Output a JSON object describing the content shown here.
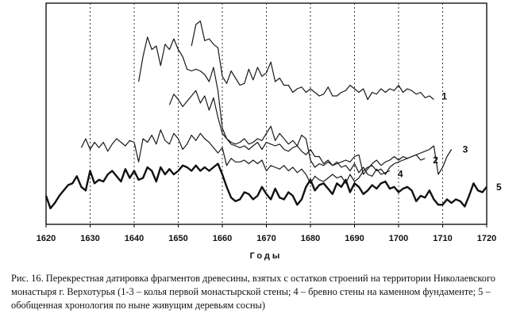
{
  "chart_data": {
    "type": "line",
    "xlabel": "Годы",
    "ylabel": "",
    "xlim": [
      1620,
      1720
    ],
    "ylim": [
      0,
      100
    ],
    "y_ticks_shown": false,
    "grid": "vertical dashed every 10 years",
    "x_ticks": [
      "1620",
      "1630",
      "1640",
      "1650",
      "1660",
      "1670",
      "1680",
      "1690",
      "1700",
      "1710",
      "1720"
    ],
    "series": [
      {
        "name": "1",
        "stroke": "#1a1a1a",
        "width": 1.2,
        "x": [
          1653,
          1654,
          1655,
          1656,
          1657,
          1658,
          1659,
          1660,
          1661,
          1662,
          1663,
          1664,
          1665,
          1666,
          1667,
          1668,
          1669,
          1670,
          1671,
          1672,
          1673,
          1674,
          1675,
          1676,
          1677,
          1678,
          1679,
          1680,
          1681,
          1682,
          1683,
          1684,
          1685,
          1686,
          1687,
          1688,
          1689,
          1690,
          1691,
          1692,
          1693,
          1694,
          1695,
          1696,
          1697,
          1698,
          1699,
          1700,
          1701,
          1702,
          1703,
          1704,
          1705,
          1706,
          1707,
          1708
        ],
        "y": [
          92,
          104,
          106,
          95,
          96,
          93,
          91,
          75,
          71,
          78,
          74,
          70,
          71,
          79,
          73,
          80,
          75,
          77,
          83,
          72,
          74,
          70,
          70,
          66,
          68,
          69,
          66,
          68,
          66,
          64,
          65,
          69,
          64,
          64,
          66,
          67,
          70,
          68,
          66,
          68,
          62,
          66,
          65,
          68,
          66,
          68,
          67,
          70,
          66,
          68,
          67,
          65,
          66,
          63,
          64,
          62
        ]
      },
      {
        "name": "2",
        "stroke": "#1a1a1a",
        "width": 1.2,
        "x": [
          1648,
          1649,
          1650,
          1651,
          1652,
          1653,
          1654,
          1655,
          1656,
          1657,
          1658,
          1659,
          1660,
          1661,
          1662,
          1663,
          1664,
          1665,
          1666,
          1667,
          1668,
          1669,
          1670,
          1671,
          1672,
          1673,
          1674,
          1675,
          1676,
          1677,
          1678,
          1679,
          1680,
          1681,
          1682,
          1683,
          1684,
          1685,
          1686,
          1687,
          1688,
          1689,
          1690,
          1691,
          1692,
          1693,
          1694,
          1695,
          1696,
          1697,
          1698,
          1699,
          1700,
          1701,
          1702,
          1703,
          1704,
          1705,
          1706
        ],
        "y": [
          59,
          65,
          62,
          58,
          61,
          64,
          67,
          60,
          64,
          56,
          63,
          52,
          43,
          40,
          38,
          37,
          38,
          40,
          37,
          38,
          40,
          39,
          43,
          47,
          39,
          43,
          40,
          37,
          39,
          36,
          42,
          40,
          28,
          24,
          26,
          25,
          27,
          25,
          26,
          27,
          28,
          27,
          30,
          31,
          20,
          23,
          26,
          28,
          25,
          27,
          28,
          30,
          28,
          30,
          29,
          30,
          31,
          28,
          29
        ]
      },
      {
        "name": "3",
        "stroke": "#1a1a1a",
        "width": 1.2,
        "x": [
          1628,
          1629,
          1630,
          1631,
          1632,
          1633,
          1634,
          1635,
          1636,
          1637,
          1638,
          1639,
          1640,
          1641,
          1642,
          1643,
          1644,
          1645,
          1646,
          1647,
          1648,
          1649,
          1650,
          1651,
          1652,
          1653,
          1654,
          1655,
          1656,
          1657,
          1658,
          1659,
          1660,
          1661,
          1662,
          1663,
          1664,
          1665,
          1666,
          1667,
          1668,
          1669,
          1670,
          1671,
          1672,
          1673,
          1674,
          1675,
          1676,
          1677,
          1678,
          1679,
          1680,
          1681,
          1682,
          1683,
          1684,
          1685,
          1686,
          1687,
          1688,
          1689,
          1690,
          1691,
          1692,
          1693,
          1694,
          1695,
          1696,
          1697,
          1698,
          1699,
          1700,
          1701,
          1702,
          1703,
          1704,
          1705,
          1706,
          1707,
          1708,
          1709,
          1710,
          1711,
          1712
        ],
        "y": [
          35,
          40,
          34,
          38,
          35,
          38,
          33,
          37,
          40,
          38,
          36,
          39,
          38,
          27,
          40,
          38,
          42,
          37,
          45,
          39,
          37,
          43,
          40,
          34,
          37,
          42,
          39,
          43,
          40,
          38,
          35,
          32,
          35,
          25,
          29,
          27,
          27,
          28,
          26,
          28,
          26,
          28,
          22,
          25,
          24,
          23,
          25,
          22,
          24,
          21,
          23,
          20,
          15,
          19,
          17,
          16,
          18,
          20,
          18,
          19,
          15,
          20,
          16,
          18,
          22,
          24,
          25,
          22,
          23,
          20,
          24,
          26,
          27,
          28,
          29,
          30,
          31,
          32,
          33,
          34,
          36,
          20,
          24,
          30,
          34
        ]
      },
      {
        "name": "4",
        "stroke": "#1a1a1a",
        "width": 1.2,
        "x": [
          1641,
          1642,
          1643,
          1644,
          1645,
          1646,
          1647,
          1648,
          1649,
          1650,
          1651,
          1652,
          1653,
          1654,
          1655,
          1656,
          1657,
          1658,
          1659,
          1660,
          1661,
          1662,
          1663,
          1664,
          1665,
          1666,
          1667,
          1668,
          1669,
          1670,
          1671,
          1672,
          1673,
          1674,
          1675,
          1676,
          1677,
          1678,
          1679,
          1680,
          1681,
          1682,
          1683,
          1684,
          1685,
          1686,
          1687,
          1688,
          1689,
          1690,
          1691,
          1692,
          1693,
          1694,
          1695,
          1696,
          1697,
          1698
        ],
        "y": [
          72,
          86,
          97,
          90,
          92,
          81,
          93,
          90,
          96,
          90,
          86,
          79,
          78,
          79,
          78,
          76,
          72,
          80,
          67,
          46,
          40,
          37,
          36,
          35,
          36,
          34,
          36,
          38,
          34,
          38,
          37,
          36,
          37,
          34,
          33,
          35,
          36,
          33,
          31,
          34,
          30,
          30,
          26,
          28,
          25,
          27,
          24,
          25,
          22,
          26,
          21,
          24,
          20,
          19,
          23,
          20,
          21,
          22
        ]
      },
      {
        "name": "5",
        "stroke": "#111111",
        "width": 2.4,
        "x": [
          1620,
          1621,
          1622,
          1623,
          1624,
          1625,
          1626,
          1627,
          1628,
          1629,
          1630,
          1631,
          1632,
          1633,
          1634,
          1635,
          1636,
          1637,
          1638,
          1639,
          1640,
          1641,
          1642,
          1643,
          1644,
          1645,
          1646,
          1647,
          1648,
          1649,
          1650,
          1651,
          1652,
          1653,
          1654,
          1655,
          1656,
          1657,
          1658,
          1659,
          1660,
          1661,
          1662,
          1663,
          1664,
          1665,
          1666,
          1667,
          1668,
          1669,
          1670,
          1671,
          1672,
          1673,
          1674,
          1675,
          1676,
          1677,
          1678,
          1679,
          1680,
          1681,
          1682,
          1683,
          1684,
          1685,
          1686,
          1687,
          1688,
          1689,
          1690,
          1691,
          1692,
          1693,
          1694,
          1695,
          1696,
          1697,
          1698,
          1699,
          1700,
          1701,
          1702,
          1703,
          1704,
          1705,
          1706,
          1707,
          1708,
          1709,
          1710,
          1711,
          1712,
          1713,
          1714,
          1715,
          1716,
          1717,
          1718,
          1719,
          1720
        ],
        "y": [
          8,
          1,
          4,
          8,
          11,
          14,
          15,
          19,
          13,
          11,
          22,
          15,
          17,
          16,
          20,
          22,
          19,
          16,
          23,
          18,
          22,
          17,
          18,
          24,
          22,
          16,
          24,
          20,
          23,
          20,
          22,
          25,
          24,
          22,
          25,
          22,
          24,
          22,
          24,
          26,
          20,
          13,
          7,
          5,
          6,
          10,
          9,
          6,
          8,
          13,
          9,
          6,
          12,
          7,
          6,
          10,
          8,
          3,
          6,
          13,
          17,
          11,
          14,
          15,
          12,
          9,
          15,
          13,
          17,
          10,
          15,
          13,
          9,
          11,
          14,
          12,
          15,
          16,
          12,
          13,
          10,
          12,
          13,
          11,
          5,
          8,
          7,
          11,
          6,
          3,
          3,
          6,
          4,
          6,
          5,
          2,
          8,
          15,
          11,
          10,
          13
        ]
      }
    ]
  },
  "caption": "Рис. 16. Перекрестная датировка фрагментов древесины, взятых с остатков строений на территории Николаевского монастыря г. Верхотурья (1-3 – колья первой монастырской стены; 4 – бревно стены на каменном фундаменте; 5 – обобщенная хронология по ныне живущим деревьям сосны)"
}
